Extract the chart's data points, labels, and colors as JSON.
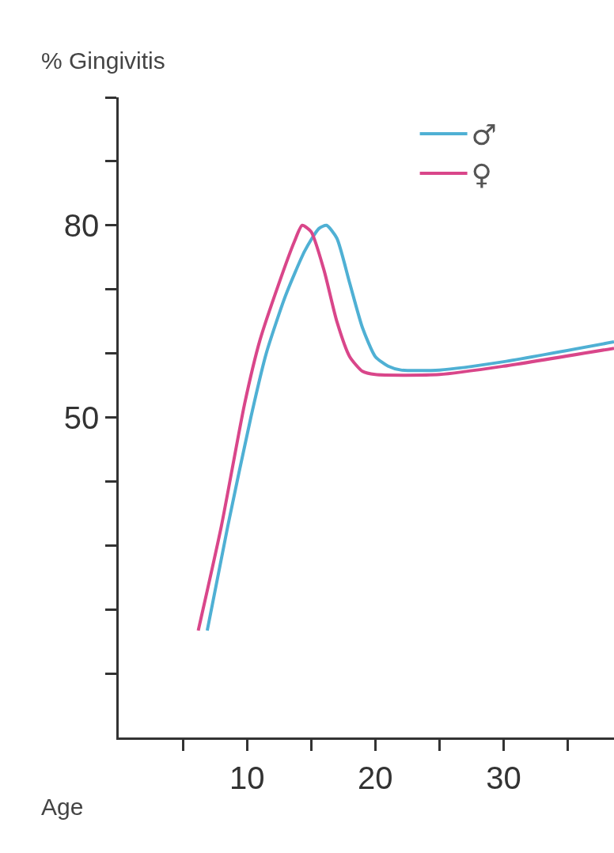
{
  "chart_data": {
    "type": "line",
    "xlabel": "Age",
    "ylabel": "% Gingivitis",
    "xlim": [
      0,
      38.6
    ],
    "ylim": [
      0,
      100
    ],
    "xticks": [
      {
        "value": 5,
        "label": null
      },
      10,
      {
        "value": 15,
        "label": null
      },
      20,
      {
        "value": 25,
        "label": null
      },
      30,
      {
        "value": 35,
        "label": null
      }
    ],
    "yticks": [
      {
        "value": 10,
        "label": null
      },
      {
        "value": 20,
        "label": null
      },
      {
        "value": 30,
        "label": null
      },
      {
        "value": 40,
        "label": null
      },
      50,
      {
        "value": 60,
        "label": null
      },
      {
        "value": 70,
        "label": null
      },
      80,
      {
        "value": 90,
        "label": null
      },
      {
        "value": 100,
        "label": null
      }
    ],
    "grid": false,
    "legend": "top right",
    "marker": "none",
    "line_style": "solid",
    "series": [
      {
        "name": "♂",
        "color": "#4fb0d4",
        "x": [
          6.9,
          8.5,
          10.3,
          11.5,
          13,
          14.5,
          15.6,
          16.2,
          17,
          18,
          19,
          20,
          21,
          22,
          25,
          30,
          38.6
        ],
        "values": [
          16.7,
          33,
          50,
          60,
          69,
          76,
          79.5,
          80,
          78,
          71,
          64,
          59.5,
          58,
          57.4,
          57.4,
          58.7,
          61.8
        ]
      },
      {
        "name": "♀",
        "color": "#d9468a",
        "x": [
          6.2,
          8,
          9.8,
          11,
          12.5,
          13.7,
          14.3,
          15,
          16,
          17,
          18,
          19,
          20,
          25,
          30,
          38.6
        ],
        "values": [
          16.7,
          33,
          52,
          62,
          71,
          77.5,
          80,
          79,
          73,
          65,
          59.5,
          57.2,
          56.7,
          56.7,
          58,
          60.8
        ]
      }
    ]
  }
}
